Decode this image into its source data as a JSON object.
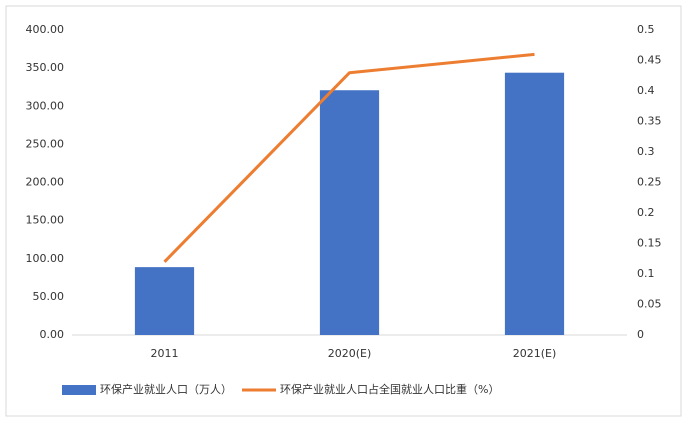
{
  "chart_data": {
    "type": "bar-line",
    "categories": [
      "2011",
      "2020(E)",
      "2021(E)"
    ],
    "series": [
      {
        "name": "环保产业就业人口（万人）",
        "color": "#4472c4",
        "type": "bar",
        "values": [
          89,
          321,
          344
        ]
      },
      {
        "name": "环保产业就业人口占全国就业人口比重（%）",
        "color": "#ed7d31",
        "type": "line",
        "axis": "y2",
        "values": [
          0.12,
          0.43,
          0.46
        ]
      }
    ],
    "ylim": [
      0,
      400
    ],
    "yticks": [
      {
        "value": 0,
        "label": "0.00"
      },
      {
        "value": 50,
        "label": "50.00"
      },
      {
        "value": 100,
        "label": "100.00"
      },
      {
        "value": 150,
        "label": "150.00"
      },
      {
        "value": 200,
        "label": "200.00"
      },
      {
        "value": 250,
        "label": "250.00"
      },
      {
        "value": 300,
        "label": "300.00"
      },
      {
        "value": 350,
        "label": "350.00"
      },
      {
        "value": 400,
        "label": "400.00"
      }
    ],
    "y2lim": [
      0,
      0.5
    ],
    "y2ticks": [
      0,
      0.05,
      0.1,
      0.15,
      0.2,
      0.25,
      0.3,
      0.35,
      0.4,
      0.45,
      0.5
    ],
    "grid": false,
    "legend": "bottom"
  }
}
